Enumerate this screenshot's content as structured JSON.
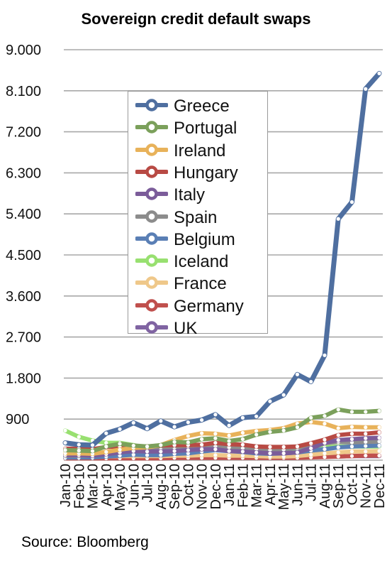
{
  "chart_data": {
    "type": "line",
    "title": "Sovereign credit default swaps",
    "xlabel": "",
    "ylabel": "",
    "ylim": [
      0,
      9000
    ],
    "yticks": [
      "9.000",
      "8.100",
      "7.200",
      "6.300",
      "5.400",
      "4.500",
      "3.600",
      "2.700",
      "1.800",
      "900"
    ],
    "ytick_values": [
      9000,
      8100,
      7200,
      6300,
      5400,
      4500,
      3600,
      2700,
      1800,
      900
    ],
    "categories": [
      "Jan-10",
      "Feb-10",
      "Mar-10",
      "Apr-10",
      "May-10",
      "Jun-10",
      "Jul-10",
      "Aug-10",
      "Sep-10",
      "Oct-10",
      "Nov-10",
      "Dec-10",
      "Jan-11",
      "Feb-11",
      "Mar-11",
      "Apr-11",
      "May-11",
      "Jun-11",
      "Jul-11",
      "Aug-11",
      "Sep-11",
      "Oct-11",
      "Nov-11",
      "Dec-11"
    ],
    "grid": true,
    "legend_position": "upper-left",
    "series": [
      {
        "name": "Greece",
        "color": "#4f6fa0",
        "values": [
          380,
          340,
          330,
          590,
          680,
          820,
          690,
          860,
          730,
          830,
          880,
          1000,
          760,
          930,
          960,
          1290,
          1430,
          1880,
          1720,
          2300,
          5290,
          5660,
          8140,
          8480
        ]
      },
      {
        "name": "Portugal",
        "color": "#7ba05b",
        "values": [
          220,
          210,
          200,
          300,
          360,
          320,
          300,
          330,
          400,
          390,
          460,
          480,
          420,
          460,
          560,
          620,
          650,
          720,
          930,
          970,
          1110,
          1060,
          1060,
          1080
        ]
      },
      {
        "name": "Ireland",
        "color": "#e8b25a",
        "values": [
          150,
          150,
          140,
          180,
          230,
          270,
          280,
          330,
          440,
          530,
          590,
          580,
          540,
          600,
          640,
          660,
          700,
          800,
          840,
          800,
          700,
          730,
          720,
          720
        ]
      },
      {
        "name": "Hungary",
        "color": "#b84a44",
        "values": [
          250,
          250,
          240,
          290,
          300,
          300,
          300,
          320,
          330,
          330,
          340,
          380,
          350,
          340,
          300,
          290,
          290,
          300,
          370,
          450,
          550,
          580,
          580,
          610
        ]
      },
      {
        "name": "Italy",
        "color": "#7b5c9a",
        "values": [
          110,
          110,
          100,
          130,
          170,
          200,
          190,
          190,
          200,
          220,
          240,
          240,
          200,
          190,
          170,
          150,
          150,
          170,
          260,
          380,
          440,
          460,
          480,
          490
        ]
      },
      {
        "name": "Spain",
        "color": "#8c8c8c",
        "values": [
          100,
          100,
          100,
          140,
          200,
          240,
          220,
          230,
          240,
          250,
          290,
          300,
          280,
          260,
          230,
          220,
          230,
          280,
          330,
          370,
          400,
          390,
          400,
          410
        ]
      },
      {
        "name": "Belgium",
        "color": "#5a7fb5",
        "values": [
          60,
          60,
          60,
          80,
          100,
          120,
          110,
          110,
          140,
          150,
          190,
          220,
          200,
          180,
          150,
          140,
          150,
          170,
          210,
          240,
          280,
          300,
          310,
          320
        ]
      },
      {
        "name": "Iceland",
        "color": "#98e070",
        "values": [
          650,
          510,
          430,
          380,
          380,
          330,
          250,
          260,
          300,
          300,
          300,
          250,
          260,
          240,
          220,
          220,
          220,
          230,
          250,
          280,
          300,
          300,
          300,
          300
        ]
      },
      {
        "name": "France",
        "color": "#efc88a",
        "values": [
          80,
          80,
          70,
          80,
          90,
          90,
          90,
          90,
          100,
          100,
          110,
          110,
          100,
          100,
          90,
          80,
          80,
          90,
          120,
          150,
          170,
          190,
          190,
          200
        ]
      },
      {
        "name": "Germany",
        "color": "#c0504d",
        "values": [
          40,
          40,
          40,
          40,
          40,
          40,
          40,
          40,
          50,
          50,
          50,
          50,
          50,
          50,
          50,
          50,
          50,
          50,
          60,
          70,
          80,
          90,
          100,
          100
        ]
      },
      {
        "name": "UK",
        "color": "#8064a2",
        "values": [
          80,
          80,
          80,
          80,
          80,
          80,
          80,
          70,
          70,
          70,
          70,
          70,
          70,
          70,
          70,
          70,
          70,
          70,
          70,
          80,
          80,
          90,
          90,
          90
        ]
      }
    ]
  },
  "source": "Source: Bloomberg"
}
